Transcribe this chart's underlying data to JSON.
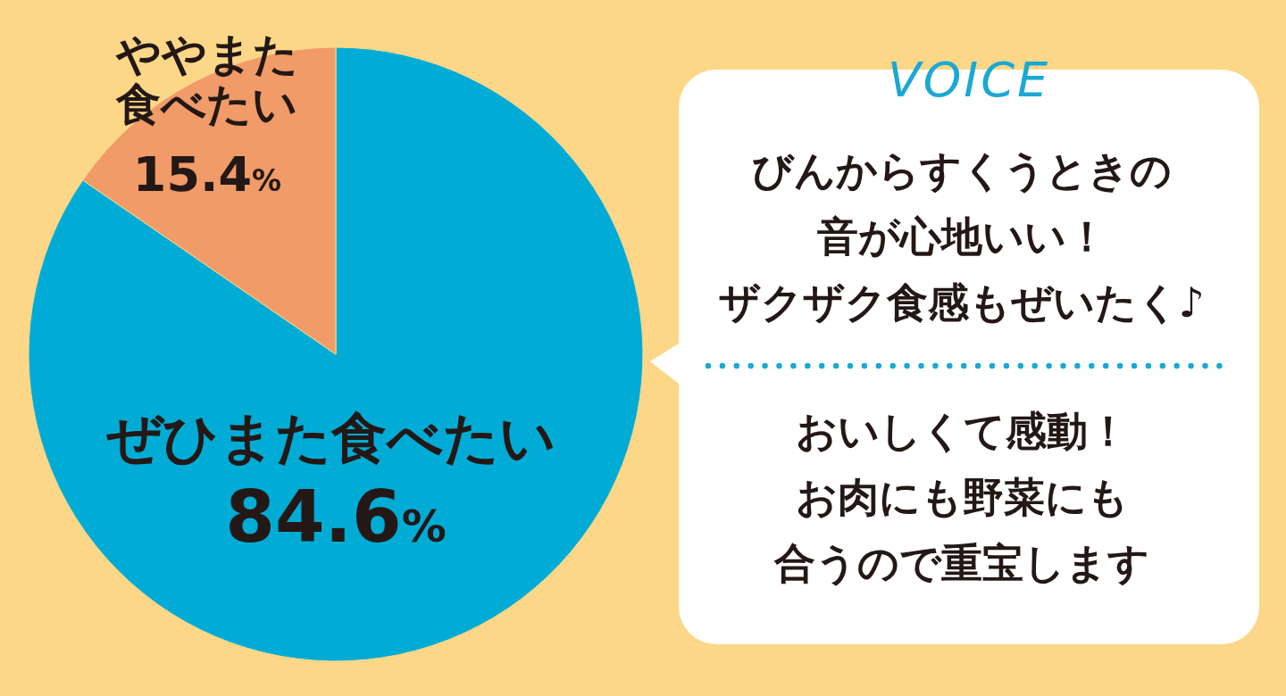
{
  "chart_data": {
    "type": "pie",
    "categories": [
      "ぜひまた食べたい",
      "ややまた食べたい"
    ],
    "values": [
      84.6,
      15.4
    ],
    "colors": [
      "#00acd6",
      "#f09b68"
    ],
    "value_labels": [
      "84.6%",
      "15.4%"
    ],
    "annotations": [
      "VOICE",
      "びんからすくうときの音が心地いい！ザクザク食感もぜいたく♪",
      "おいしくて感動！お肉にも野菜にも合うので重宝します"
    ]
  }
}
